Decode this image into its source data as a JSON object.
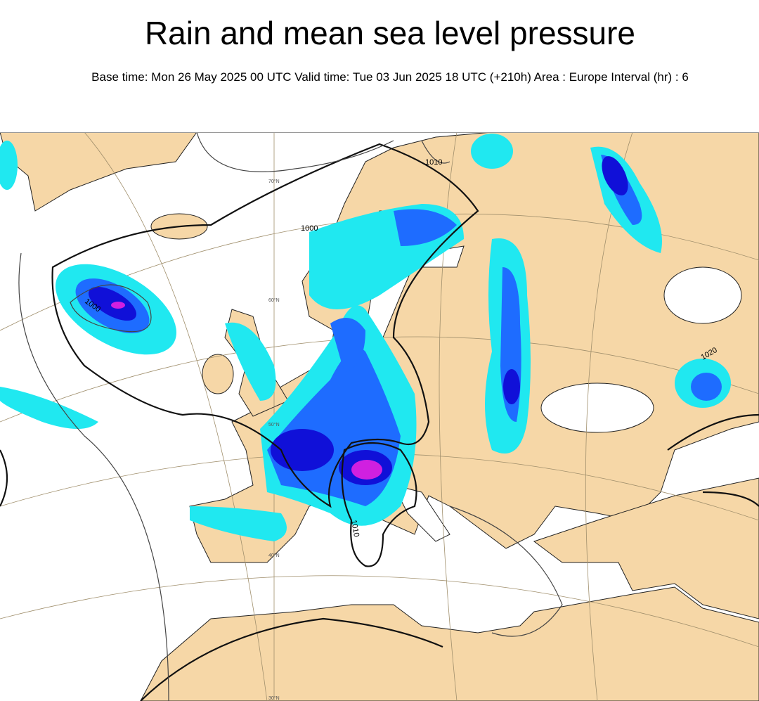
{
  "header": {
    "title": "Rain and mean sea level pressure",
    "subtitle": "Base time: Mon 26 May 2025 00 UTC Valid time: Tue 03 Jun 2025 18 UTC (+210h) Area : Europe Interval (hr) : 6"
  },
  "map": {
    "isobar_labels": [
      "1010",
      "1000",
      "1000",
      "1010",
      "1020"
    ],
    "latitude_labels": [
      "70°N",
      "60°N",
      "50°N",
      "40°N",
      "30°N"
    ]
  }
}
